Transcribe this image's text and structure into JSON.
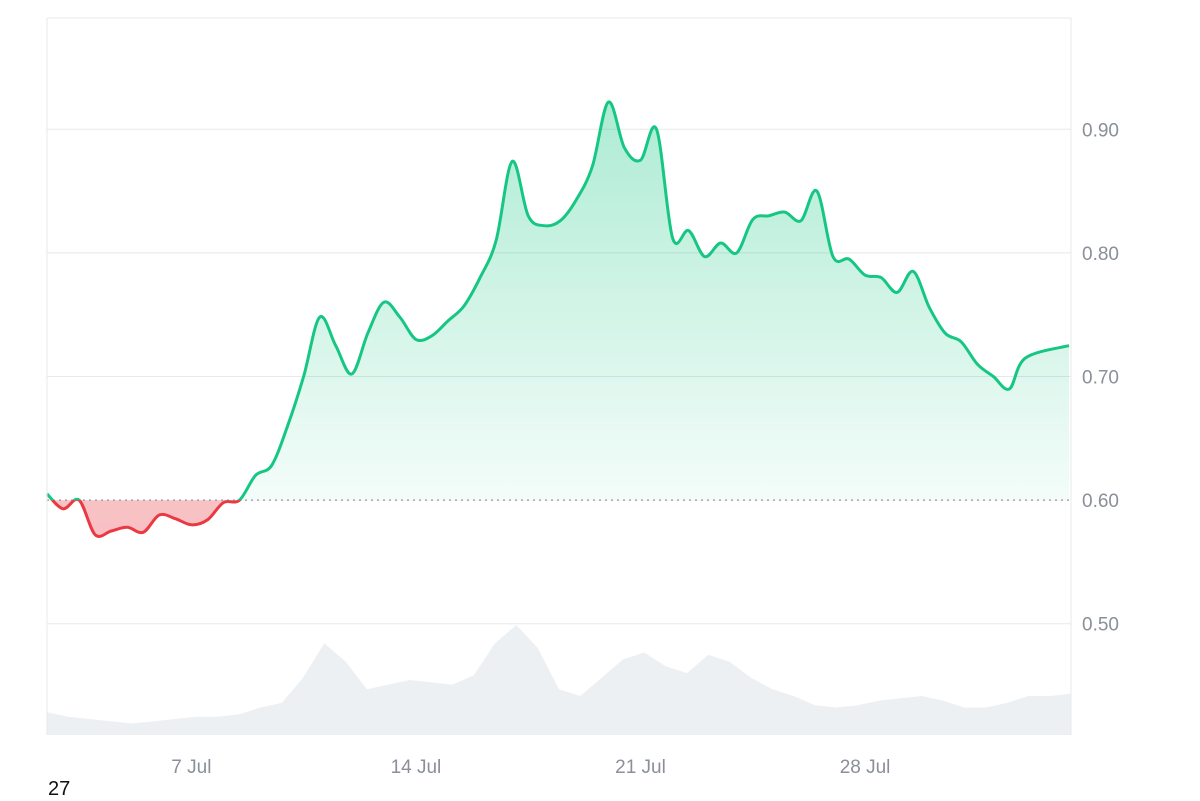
{
  "corner_text": "27",
  "colors": {
    "up": "#16c784",
    "down": "#ea3943",
    "volume": "#edf0f3",
    "grid": "#e6e8eb",
    "tick_text": "#8a8f98"
  },
  "chart_data": {
    "type": "line",
    "title": "",
    "xlabel": "",
    "ylabel": "",
    "x_ticks": [
      "7 Jul",
      "14 Jul",
      "21 Jul",
      "28 Jul"
    ],
    "y_ticks": [
      "0.90",
      "0.80",
      "0.70",
      "0.60",
      "0.50"
    ],
    "ylim": [
      0.41,
      0.99
    ],
    "x_range": [
      "3 Jul",
      "3 Aug"
    ],
    "baseline": 0.6,
    "grid": true,
    "legend": "none",
    "series": [
      {
        "x": [
          "3 Jul",
          "3 Jul",
          "4 Jul",
          "4 Jul",
          "5 Jul",
          "5 Jul",
          "6 Jul",
          "6 Jul",
          "7 Jul",
          "7 Jul",
          "8 Jul",
          "8 Jul",
          "9 Jul",
          "9 Jul",
          "10 Jul",
          "10 Jul",
          "11 Jul",
          "11 Jul",
          "12 Jul",
          "12 Jul",
          "13 Jul",
          "13 Jul",
          "14 Jul",
          "14 Jul",
          "15 Jul",
          "15 Jul",
          "16 Jul",
          "16 Jul",
          "17 Jul",
          "17 Jul",
          "18 Jul",
          "18 Jul",
          "19 Jul",
          "19 Jul",
          "20 Jul",
          "20 Jul",
          "21 Jul",
          "21 Jul",
          "22 Jul",
          "22 Jul",
          "23 Jul",
          "23 Jul",
          "24 Jul",
          "24 Jul",
          "25 Jul",
          "25 Jul",
          "26 Jul",
          "26 Jul",
          "27 Jul",
          "27 Jul",
          "28 Jul",
          "28 Jul",
          "29 Jul",
          "29 Jul",
          "30 Jul",
          "30 Jul",
          "31 Jul",
          "31 Jul",
          "1 Aug",
          "1 Aug",
          "2 Aug",
          "2 Aug",
          "3 Aug"
        ],
        "values": [
          0.605,
          0.593,
          0.6,
          0.572,
          0.575,
          0.578,
          0.574,
          0.588,
          0.585,
          0.58,
          0.584,
          0.598,
          0.6,
          0.62,
          0.628,
          0.66,
          0.7,
          0.748,
          0.725,
          0.702,
          0.735,
          0.76,
          0.748,
          0.73,
          0.733,
          0.745,
          0.757,
          0.78,
          0.81,
          0.874,
          0.83,
          0.822,
          0.826,
          0.843,
          0.87,
          0.922,
          0.885,
          0.875,
          0.9,
          0.812,
          0.818,
          0.797,
          0.808,
          0.8,
          0.827,
          0.83,
          0.833,
          0.826,
          0.85,
          0.797,
          0.795,
          0.782,
          0.78,
          0.768,
          0.785,
          0.756,
          0.735,
          0.728,
          0.71,
          0.7,
          0.69,
          0.715,
          0.725
        ]
      }
    ],
    "volume": [
      0.1,
      0.08,
      0.07,
      0.06,
      0.05,
      0.06,
      0.07,
      0.08,
      0.08,
      0.09,
      0.12,
      0.14,
      0.25,
      0.4,
      0.32,
      0.2,
      0.22,
      0.24,
      0.23,
      0.22,
      0.26,
      0.4,
      0.48,
      0.38,
      0.2,
      0.17,
      0.25,
      0.33,
      0.36,
      0.3,
      0.27,
      0.35,
      0.32,
      0.25,
      0.2,
      0.17,
      0.13,
      0.12,
      0.13,
      0.15,
      0.16,
      0.17,
      0.15,
      0.12,
      0.12,
      0.14,
      0.17,
      0.17,
      0.18
    ]
  }
}
